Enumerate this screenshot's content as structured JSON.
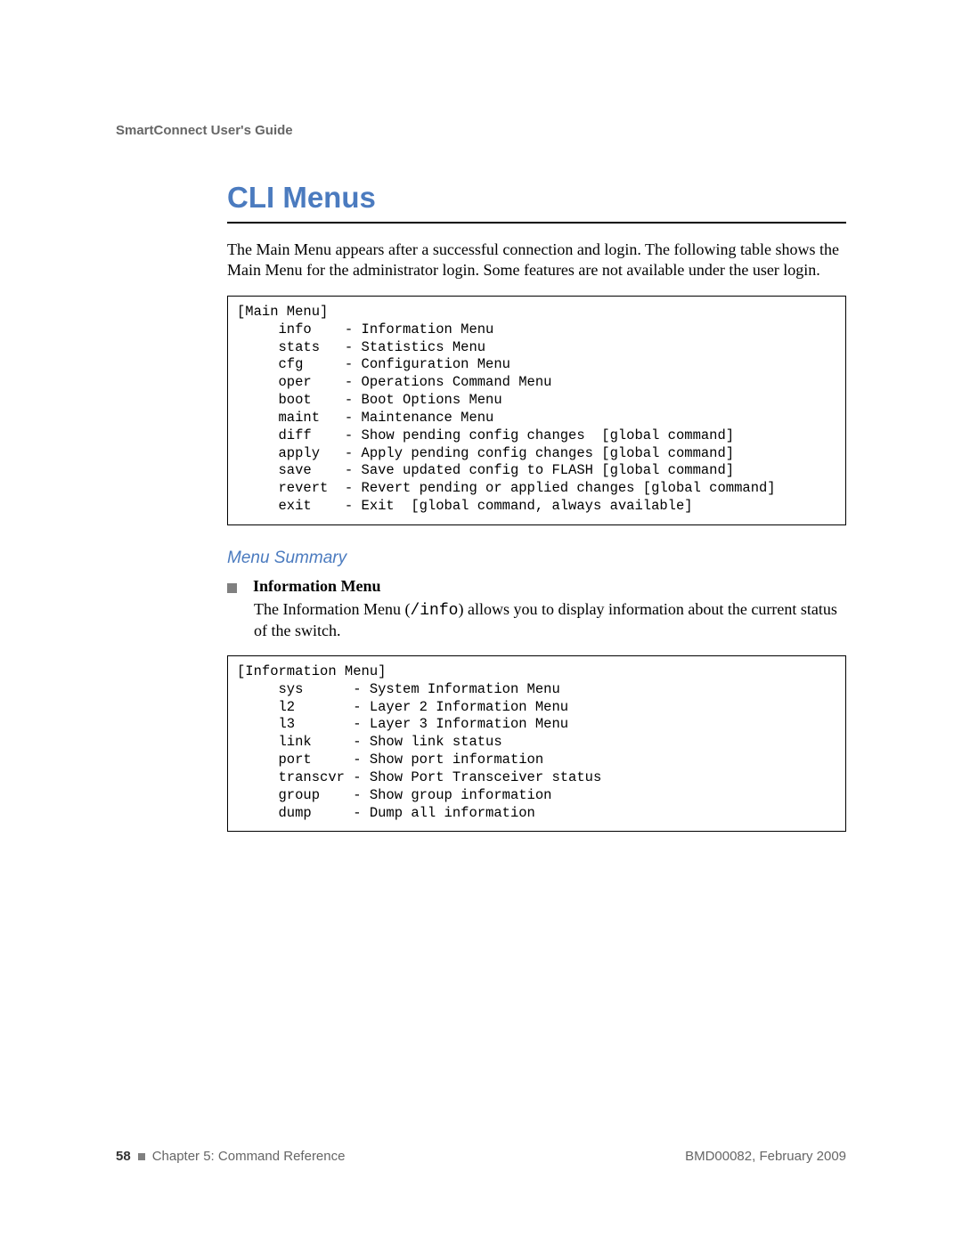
{
  "colors": {
    "heading_blue": "#4b7bbf",
    "gray_text": "#666666",
    "bullet_gray": "#808080",
    "border_black": "#000000",
    "body_text": "#000000",
    "background": "#ffffff"
  },
  "typography": {
    "body_font": "Times New Roman",
    "heading_font": "Arial",
    "mono_font": "Courier New",
    "title_size_pt": 25,
    "body_size_pt": 13,
    "code_size_pt": 11
  },
  "header": {
    "running": "SmartConnect User's Guide"
  },
  "title": "CLI Menus",
  "intro": "The Main Menu appears after a successful connection and login. The following table shows the Main Menu for the administrator login. Some features are not available under the user login.",
  "main_menu_box": "[Main Menu]\n     info    - Information Menu\n     stats   - Statistics Menu\n     cfg     - Configuration Menu\n     oper    - Operations Command Menu\n     boot    - Boot Options Menu\n     maint   - Maintenance Menu\n     diff    - Show pending config changes  [global command]\n     apply   - Apply pending config changes [global command]\n     save    - Save updated config to FLASH [global command]\n     revert  - Revert pending or applied changes [global command]\n     exit    - Exit  [global command, always available]",
  "subheading": "Menu Summary",
  "bullet": {
    "title": "Information Menu",
    "body_pre": "The Information Menu (",
    "body_mono": "/info",
    "body_post": ") allows you to display information about the current status of the switch."
  },
  "info_menu_box": "[Information Menu]\n     sys      - System Information Menu\n     l2       - Layer 2 Information Menu\n     l3       - Layer 3 Information Menu\n     link     - Show link status\n     port     - Show port information\n     transcvr - Show Port Transceiver status\n     group    - Show group information\n     dump     - Dump all information",
  "footer": {
    "page_number": "58",
    "chapter": "Chapter 5: Command Reference",
    "docref": "BMD00082, February 2009"
  }
}
